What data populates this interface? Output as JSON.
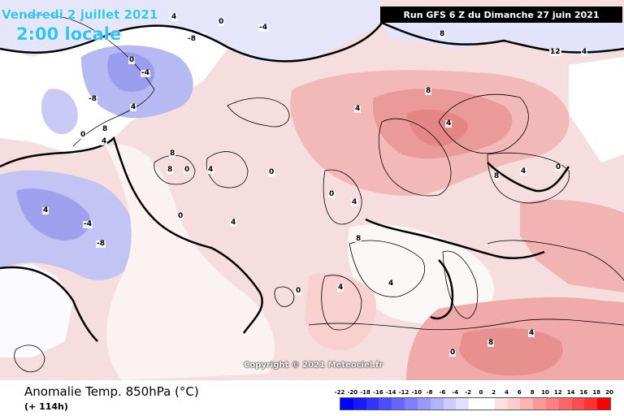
{
  "header": {
    "date": "Vendredi 2 juillet 2021",
    "time": "2:00 locale",
    "run": "Run GFS 6 Z du Dimanche 27 juin 2021"
  },
  "copyright": "Copyright © 2021 Meteociel.fr",
  "footer": {
    "title": "Anomalie Temp. 850hPa (°C)",
    "lead_time": "(+ 114h)"
  },
  "legend": {
    "ticks": [
      "-22",
      "-20",
      "-18",
      "-16",
      "-14",
      "-12",
      "-10",
      "-8",
      "-6",
      "-4",
      "-2",
      "0",
      "2",
      "4",
      "6",
      "8",
      "10",
      "12",
      "14",
      "16",
      "18",
      "20"
    ],
    "colors": [
      "#0000ff",
      "#1a1aff",
      "#3333ff",
      "#4d4dff",
      "#6666ff",
      "#8080ff",
      "#9999ff",
      "#b3b3ff",
      "#ccccff",
      "#e0e0ff",
      "#ffffff",
      "#ffffff",
      "#ffe0e0",
      "#ffcccc",
      "#ffb3b3",
      "#ff9999",
      "#ff8080",
      "#ff6666",
      "#ff4d4d",
      "#ff3333",
      "#ff0000"
    ]
  },
  "map": {
    "contour_labels": [
      "4",
      "0",
      "-4",
      "-8",
      "8",
      "12",
      "4",
      "0",
      "-4",
      "-8",
      "4",
      "8",
      "0",
      "4",
      "4",
      "-4",
      "-8",
      "0",
      "4",
      "8",
      "0",
      "8",
      "4",
      "0",
      "4",
      "8",
      "4",
      "8",
      "0",
      "4",
      "0",
      "4",
      "8",
      "4",
      "0",
      "4",
      "0",
      "8",
      "4"
    ]
  }
}
